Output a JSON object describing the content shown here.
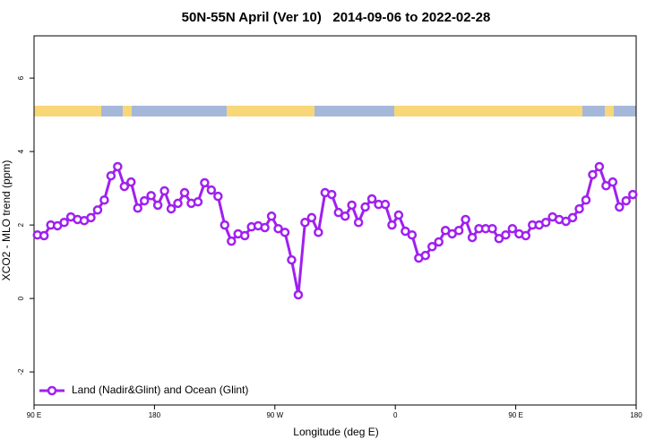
{
  "chart_data": {
    "type": "line",
    "title": "50N-55N April (Ver 10)   2014-09-06 to 2022-02-28",
    "xlabel": "Longitude (deg E)",
    "ylabel": "XCO2 - MLO trend (ppm)",
    "x": [
      92.5,
      97.5,
      102.5,
      107.5,
      112.5,
      117.5,
      122.5,
      127.5,
      132.5,
      137.5,
      142.5,
      147.5,
      152.5,
      157.5,
      162.5,
      167.5,
      172.5,
      177.5,
      182.5,
      187.5,
      192.5,
      197.5,
      202.5,
      207.5,
      212.5,
      217.5,
      222.5,
      227.5,
      232.5,
      237.5,
      242.5,
      247.5,
      252.5,
      257.5,
      262.5,
      267.5,
      272.5,
      277.5,
      282.5,
      287.5,
      292.5,
      297.5,
      302.5,
      307.5,
      312.5,
      317.5,
      322.5,
      327.5,
      332.5,
      337.5,
      342.5,
      347.5,
      352.5,
      357.5,
      362.5,
      367.5,
      372.5,
      377.5,
      382.5,
      387.5,
      392.5,
      397.5,
      402.5,
      407.5,
      412.5,
      417.5,
      422.5,
      427.5,
      432.5,
      437.5,
      442.5,
      447.5,
      452.5,
      457.5,
      462.5,
      467.5,
      472.5,
      477.5,
      482.5,
      487.5,
      492.5,
      497.5,
      502.5,
      507.5,
      512.5,
      517.5,
      522.5,
      527.5,
      532.5,
      537.5
    ],
    "series": [
      {
        "name": "Land (Nadir&Glint) and Ocean (Glint)",
        "color": "#a020f0",
        "values": [
          1.73,
          1.71,
          2.0,
          1.98,
          2.07,
          2.22,
          2.15,
          2.12,
          2.2,
          2.41,
          2.68,
          3.34,
          3.59,
          3.05,
          3.17,
          2.46,
          2.66,
          2.8,
          2.54,
          2.93,
          2.44,
          2.59,
          2.88,
          2.59,
          2.63,
          3.15,
          2.95,
          2.78,
          2.0,
          1.56,
          1.76,
          1.71,
          1.95,
          1.98,
          1.93,
          2.24,
          1.9,
          1.8,
          1.05,
          0.1,
          2.07,
          2.2,
          1.8,
          2.88,
          2.83,
          2.34,
          2.24,
          2.54,
          2.07,
          2.49,
          2.71,
          2.56,
          2.56,
          2.0,
          2.27,
          1.83,
          1.73,
          1.1,
          1.17,
          1.41,
          1.54,
          1.85,
          1.76,
          1.85,
          2.15,
          1.66,
          1.9,
          1.9,
          1.9,
          1.63,
          1.73,
          1.9,
          1.76,
          1.71,
          2.0,
          2.0,
          2.07,
          2.22,
          2.15,
          2.1,
          2.2,
          2.44,
          2.68,
          3.37,
          3.59,
          3.07,
          3.17,
          2.49,
          2.66,
          2.83
        ]
      }
    ],
    "xlim": [
      90,
      540
    ],
    "xticks": [
      {
        "value": 90,
        "label": "90 E"
      },
      180,
      {
        "value": 270,
        "label": "90 W"
      },
      {
        "value": 360,
        "label": "0"
      },
      {
        "value": 450,
        "label": "90 E"
      },
      {
        "value": 540,
        "label": "180"
      }
    ],
    "ylim": [
      -2.9,
      7.15
    ],
    "yticks": [
      -2,
      0,
      2,
      4,
      6
    ],
    "legend": "bottomleft"
  }
}
